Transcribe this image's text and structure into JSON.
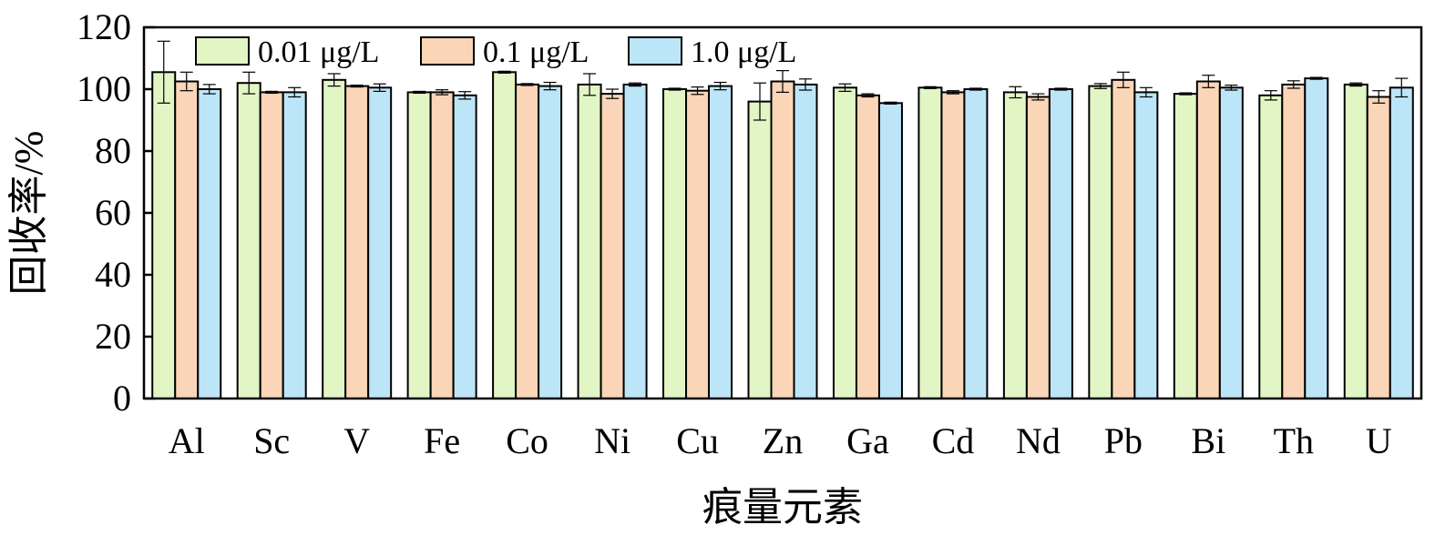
{
  "chart_data": {
    "type": "bar",
    "xlabel": "痕量元素",
    "ylabel": "回收率/%",
    "ylim": [
      0,
      120
    ],
    "yticks": [
      0,
      20,
      40,
      60,
      80,
      100,
      120
    ],
    "grid": false,
    "legend_position": "top-left",
    "categories": [
      "Al",
      "Sc",
      "V",
      "Fe",
      "Co",
      "Ni",
      "Cu",
      "Zn",
      "Ga",
      "Cd",
      "Nd",
      "Pb",
      "Bi",
      "Th",
      "U"
    ],
    "series": [
      {
        "name": "0.01 μg/L",
        "color": "#e2f5c5",
        "values": [
          105.5,
          102,
          103,
          99,
          105.5,
          101.5,
          100,
          96,
          100.5,
          100.5,
          99,
          101,
          98.5,
          98,
          101.5
        ],
        "errors": [
          10,
          3.5,
          2,
          0.3,
          0.3,
          3.5,
          0.3,
          6,
          1.2,
          0.3,
          1.8,
          0.8,
          0.3,
          1.5,
          0.5
        ]
      },
      {
        "name": "0.1 μg/L",
        "color": "#fad5b8",
        "values": [
          102.5,
          99,
          101,
          99,
          101.5,
          98.5,
          99.5,
          102.5,
          98,
          99,
          97.5,
          103,
          102.5,
          101.5,
          97.5
        ],
        "errors": [
          3,
          0.3,
          0.3,
          0.8,
          0.3,
          1.5,
          1.2,
          3.5,
          0.5,
          0.5,
          1,
          2.5,
          2,
          1.2,
          2
        ]
      },
      {
        "name": "1.0 μg/L",
        "color": "#bde5f8",
        "values": [
          100,
          99,
          100.5,
          98,
          101,
          101.5,
          101,
          101.5,
          95.5,
          100,
          100,
          99,
          100.5,
          103.5,
          100.5
        ],
        "errors": [
          1.5,
          1.5,
          1.2,
          1.2,
          1.2,
          0.5,
          1.2,
          1.8,
          0.3,
          0.3,
          0.3,
          1.5,
          0.8,
          0.3,
          3
        ]
      }
    ]
  }
}
